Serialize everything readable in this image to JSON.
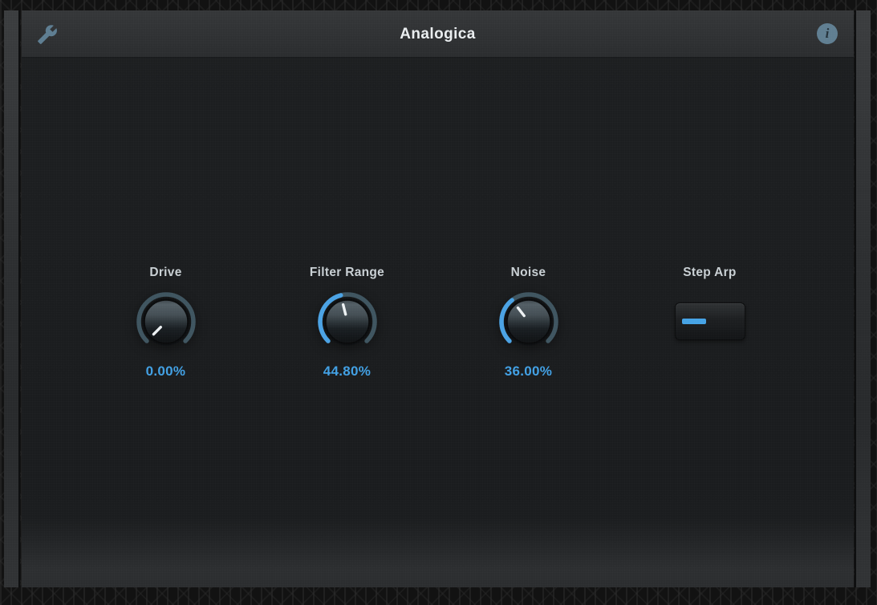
{
  "header": {
    "title": "Analogica",
    "left_icon": "wrench-icon",
    "right_icon": "info-icon",
    "info_glyph": "i"
  },
  "controls": {
    "knobs": [
      {
        "id": "drive",
        "label": "Drive",
        "value_display": "0.00%",
        "value_percent": 0
      },
      {
        "id": "filter-range",
        "label": "Filter Range",
        "value_display": "44.80%",
        "value_percent": 44.8
      },
      {
        "id": "noise",
        "label": "Noise",
        "value_display": "36.00%",
        "value_percent": 36
      }
    ],
    "toggle": {
      "id": "step-arp",
      "label": "Step Arp",
      "state": "on"
    }
  },
  "theme": {
    "accent_blue": "#45a3e5",
    "knob_track": "#3e545f",
    "label_color": "#c9d0d4",
    "header_bg": "#303234",
    "body_bg": "#1a1c1e",
    "icon_color": "#5d7d91"
  }
}
